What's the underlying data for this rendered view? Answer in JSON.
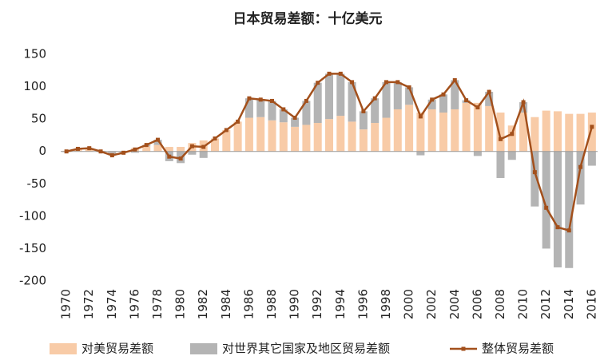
{
  "chart_data": {
    "type": "bar-line",
    "title": "日本贸易差额：十亿美元",
    "categories": [
      "1970",
      null,
      "1972",
      null,
      "1974",
      null,
      "1976",
      null,
      "1978",
      null,
      "1980",
      null,
      "1982",
      null,
      "1984",
      null,
      "1986",
      null,
      "1988",
      null,
      "1990",
      null,
      "1992",
      null,
      "1994",
      null,
      "1996",
      null,
      "1998",
      null,
      "2000",
      null,
      "2002",
      null,
      "2004",
      null,
      "2006",
      null,
      "2008",
      null,
      "2010",
      null,
      "2012",
      null,
      "2014",
      null,
      "2016"
    ],
    "series": [
      {
        "name": "对美贸易差额",
        "kind": "bar",
        "color": "#f8cba7",
        "values": [
          1,
          3,
          4,
          1,
          -1,
          -1,
          5,
          8,
          10,
          7,
          7,
          13,
          17,
          20,
          33,
          46,
          52,
          53,
          48,
          45,
          38,
          41,
          44,
          50,
          55,
          46,
          34,
          44,
          52,
          65,
          72,
          60,
          65,
          60,
          65,
          75,
          75,
          70,
          60,
          40,
          60,
          53,
          63,
          62,
          58,
          58,
          60
        ]
      },
      {
        "name": "对世界其它国家及地区贸易差额",
        "kind": "bar",
        "color": "#b4b4b4",
        "values": [
          -1,
          1,
          1,
          -1,
          -5,
          -1,
          -2,
          2,
          8,
          -15,
          -18,
          -5,
          -10,
          0,
          0,
          0,
          30,
          27,
          30,
          20,
          14,
          37,
          62,
          70,
          65,
          61,
          28,
          38,
          55,
          42,
          27,
          -6,
          15,
          28,
          45,
          4,
          -7,
          22,
          -41,
          -13,
          16,
          -85,
          -150,
          -179,
          -180,
          -82,
          -22
        ]
      },
      {
        "name": "整体贸易差额",
        "kind": "line",
        "color": "#a3501c",
        "values": [
          0,
          4,
          5,
          0,
          -6,
          -2,
          3,
          10,
          18,
          -8,
          -11,
          8,
          7,
          20,
          33,
          46,
          82,
          80,
          78,
          65,
          52,
          78,
          106,
          120,
          120,
          107,
          62,
          82,
          107,
          107,
          99,
          54,
          80,
          88,
          110,
          79,
          68,
          92,
          19,
          27,
          76,
          -32,
          -87,
          -117,
          -122,
          -24,
          38
        ]
      }
    ],
    "ylim": [
      -200,
      150
    ],
    "yticks": [
      -200,
      -150,
      -100,
      -50,
      0,
      50,
      100,
      150
    ],
    "grid": false
  }
}
